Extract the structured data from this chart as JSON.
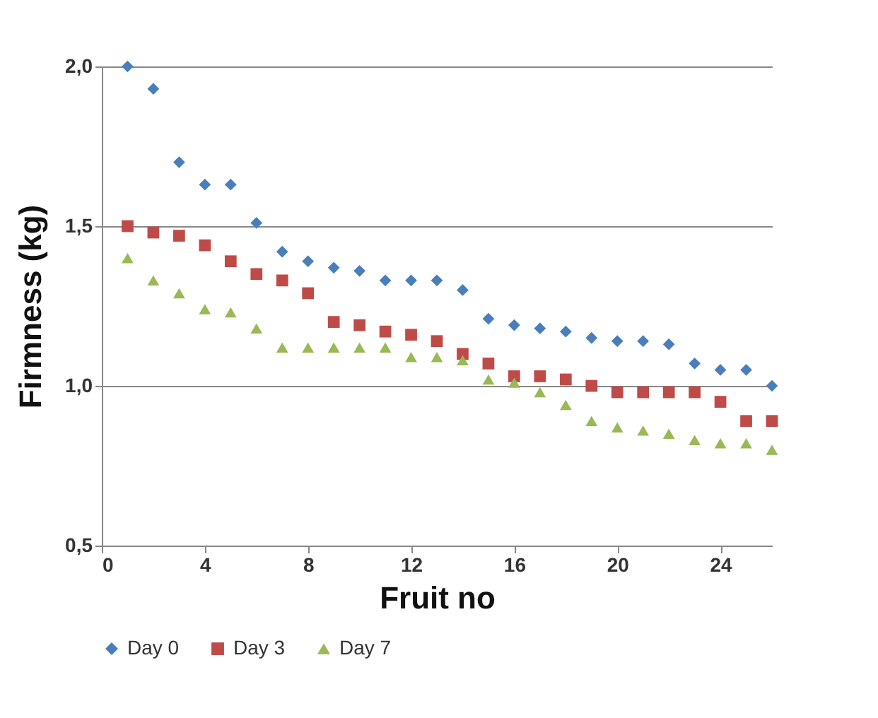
{
  "chart_data": {
    "type": "scatter",
    "xlabel": "Fruit no",
    "ylabel": "Firmness (kg)",
    "x": [
      1,
      2,
      3,
      4,
      5,
      6,
      7,
      8,
      9,
      10,
      11,
      12,
      13,
      14,
      15,
      16,
      17,
      18,
      19,
      20,
      21,
      22,
      23,
      24,
      25,
      26
    ],
    "series": [
      {
        "name": "Day 0",
        "color": "#4a7ebb",
        "marker": "diamond",
        "values": [
          2.0,
          1.93,
          1.7,
          1.63,
          1.63,
          1.51,
          1.42,
          1.39,
          1.37,
          1.36,
          1.33,
          1.33,
          1.33,
          1.3,
          1.21,
          1.19,
          1.18,
          1.17,
          1.15,
          1.14,
          1.14,
          1.13,
          1.07,
          1.05,
          1.05,
          1.0
        ]
      },
      {
        "name": "Day 3",
        "color": "#be4b48",
        "marker": "square",
        "values": [
          1.5,
          1.48,
          1.47,
          1.44,
          1.39,
          1.35,
          1.33,
          1.29,
          1.2,
          1.19,
          1.17,
          1.16,
          1.14,
          1.1,
          1.07,
          1.03,
          1.03,
          1.02,
          1.0,
          0.98,
          0.98,
          0.98,
          0.98,
          0.95,
          0.89,
          0.89
        ]
      },
      {
        "name": "Day 7",
        "color": "#98b954",
        "marker": "triangle",
        "values": [
          1.4,
          1.33,
          1.29,
          1.24,
          1.23,
          1.18,
          1.12,
          1.12,
          1.12,
          1.12,
          1.12,
          1.09,
          1.09,
          1.08,
          1.02,
          1.01,
          0.98,
          0.94,
          0.89,
          0.87,
          0.86,
          0.85,
          0.83,
          0.82,
          0.82,
          0.8
        ]
      }
    ],
    "xlim": [
      0,
      26
    ],
    "xticks": [
      0,
      4,
      8,
      12,
      16,
      20,
      24
    ],
    "ylim": [
      0.5,
      2.0
    ],
    "yticks": [
      {
        "value": 0.5,
        "label": "0,5"
      },
      {
        "value": 1.0,
        "label": "1,0"
      },
      {
        "value": 1.5,
        "label": "1,5"
      },
      {
        "value": 2.0,
        "label": "2,0"
      }
    ],
    "grid": "y",
    "legend": "bottom"
  }
}
